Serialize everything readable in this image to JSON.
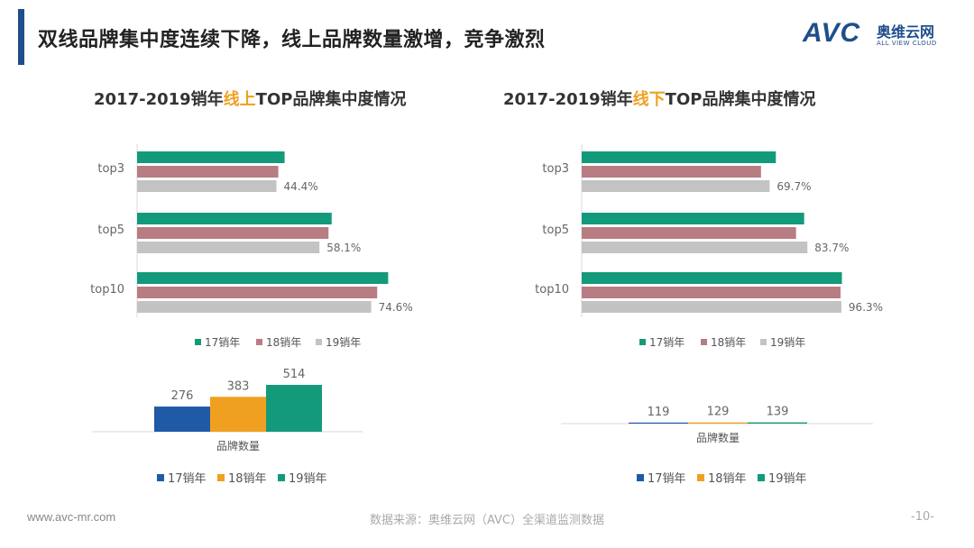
{
  "header": {
    "title": "双线品牌集中度连续下降，线上品牌数量激增，竞争激烈"
  },
  "logo": {
    "brand": "AVC",
    "cn": "奥维云网",
    "en": "ALL VIEW CLOUD"
  },
  "charts": {
    "online_title": {
      "prefix": "2017-2019销年",
      "highlight": "线上",
      "suffix": "TOP品牌集中度情况"
    },
    "offline_title": {
      "prefix": "2017-2019销年",
      "highlight": "线下",
      "suffix": "TOP品牌集中度情况"
    }
  },
  "colors": {
    "s17": "#139a7b",
    "s18": "#b87c83",
    "s19": "#c3c3c3",
    "b17": "#1f5aa6",
    "b18": "#f0a020",
    "b19": "#139a7b",
    "highlight": "#f0a020"
  },
  "chart_data": [
    {
      "id": "online_concentration",
      "type": "bar",
      "orientation": "horizontal",
      "title": "2017-2019销年线上TOP品牌集中度情况",
      "categories": [
        "top3",
        "top5",
        "top10"
      ],
      "series": [
        {
          "name": "17销年",
          "values": [
            47,
            62,
            80
          ],
          "labels": [
            "",
            "",
            ""
          ]
        },
        {
          "name": "18销年",
          "values": [
            45,
            61,
            76.5
          ],
          "labels": [
            "",
            "",
            ""
          ]
        },
        {
          "name": "19销年",
          "values": [
            44.4,
            58.1,
            74.6
          ],
          "labels": [
            "44.4%",
            "58.1%",
            "74.6%"
          ]
        }
      ],
      "xlim": [
        0,
        100
      ],
      "legend": "bottom"
    },
    {
      "id": "offline_concentration",
      "type": "bar",
      "orientation": "horizontal",
      "title": "2017-2019销年线下TOP品牌集中度情况",
      "categories": [
        "top3",
        "top5",
        "top10"
      ],
      "series": [
        {
          "name": "17销年",
          "values": [
            72,
            82.5,
            96.5
          ],
          "labels": [
            "",
            "",
            ""
          ]
        },
        {
          "name": "18销年",
          "values": [
            66.5,
            79.5,
            96
          ],
          "labels": [
            "",
            "",
            ""
          ]
        },
        {
          "name": "19销年",
          "values": [
            69.7,
            83.7,
            96.3
          ],
          "labels": [
            "69.7%",
            "83.7%",
            "96.3%"
          ]
        }
      ],
      "xlim": [
        0,
        100
      ],
      "legend": "bottom"
    },
    {
      "id": "online_brand_count",
      "type": "bar",
      "categories": [
        "17销年",
        "18销年",
        "19销年"
      ],
      "values": [
        276,
        383,
        514
      ],
      "xlabel": "品牌数量",
      "ylim": [
        0,
        514
      ],
      "legend": "bottom"
    },
    {
      "id": "offline_brand_count",
      "type": "bar",
      "categories": [
        "17销年",
        "18销年",
        "19销年"
      ],
      "values": [
        119,
        129,
        139
      ],
      "xlabel": "品牌数量",
      "ylim": [
        0,
        1100
      ],
      "legend": "bottom"
    }
  ],
  "footer": {
    "url": "www.avc-mr.com",
    "source": "数据来源：奥维云网（AVC）全渠道监测数据",
    "page": "-10-"
  }
}
